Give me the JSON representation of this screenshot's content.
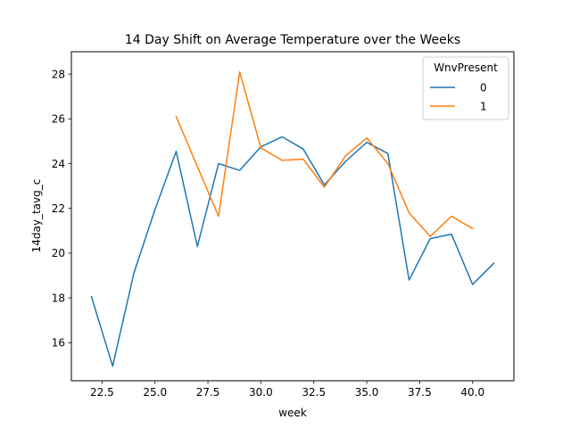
{
  "chart_data": {
    "type": "line",
    "title": "14 Day Shift on Average Temperature over the Weeks",
    "xlabel": "week",
    "ylabel": "14day_tavg_c",
    "xlim": [
      21.05,
      41.95
    ],
    "ylim": [
      14.3,
      29.0
    ],
    "xticks": [
      22.5,
      25.0,
      27.5,
      30.0,
      32.5,
      35.0,
      37.5,
      40.0
    ],
    "xtick_labels": [
      "22.5",
      "25.0",
      "27.5",
      "30.0",
      "32.5",
      "35.0",
      "37.5",
      "40.0"
    ],
    "yticks": [
      16,
      18,
      20,
      22,
      24,
      26,
      28
    ],
    "ytick_labels": [
      "16",
      "18",
      "20",
      "22",
      "24",
      "26",
      "28"
    ],
    "grid": false,
    "legend": {
      "title": "WnvPresent",
      "position": "top-right"
    },
    "series": [
      {
        "name": "0",
        "color": "#1f77b4",
        "x": [
          22,
          23,
          24,
          25,
          26,
          27,
          28,
          29,
          30,
          31,
          32,
          33,
          34,
          35,
          36,
          37,
          38,
          39,
          40,
          41
        ],
        "y": [
          18.05,
          14.95,
          19.1,
          21.95,
          24.55,
          20.3,
          24.0,
          23.7,
          24.75,
          25.2,
          24.65,
          23.05,
          24.1,
          24.95,
          24.45,
          18.8,
          20.65,
          20.85,
          18.6,
          19.55
        ]
      },
      {
        "name": "1",
        "color": "#ff7f0e",
        "x": [
          26,
          28,
          29,
          30,
          31,
          32,
          33,
          34,
          35,
          36,
          37,
          38,
          39,
          40
        ],
        "y": [
          26.1,
          21.65,
          28.1,
          24.7,
          24.15,
          24.2,
          22.95,
          24.35,
          25.15,
          24.0,
          21.8,
          20.75,
          21.65,
          21.1
        ]
      }
    ]
  }
}
